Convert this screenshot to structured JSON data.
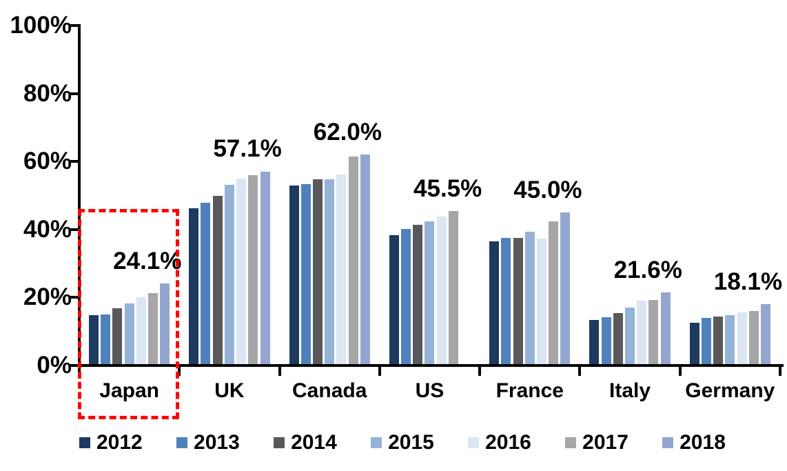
{
  "chart_data": {
    "type": "bar",
    "title": "",
    "xlabel": "",
    "ylabel": "",
    "categories": [
      "Japan",
      "UK",
      "Canada",
      "US",
      "France",
      "Italy",
      "Germany"
    ],
    "series": [
      {
        "name": "2012",
        "color": "#1d3a5f",
        "values": [
          14.9,
          46.3,
          53.0,
          38.4,
          36.5,
          13.3,
          12.6
        ]
      },
      {
        "name": "2013",
        "color": "#4f81bd",
        "values": [
          15.1,
          47.8,
          53.3,
          40.2,
          37.5,
          14.3,
          14.1
        ]
      },
      {
        "name": "2014",
        "color": "#595959",
        "values": [
          16.8,
          50.0,
          54.8,
          41.3,
          37.5,
          15.4,
          14.4
        ]
      },
      {
        "name": "2015",
        "color": "#95b3d7",
        "values": [
          18.2,
          53.2,
          54.8,
          42.3,
          39.3,
          17.0,
          14.8
        ]
      },
      {
        "name": "2016",
        "color": "#dce6f2",
        "values": [
          20.0,
          54.9,
          56.2,
          43.9,
          37.3,
          19.0,
          15.6
        ]
      },
      {
        "name": "2017",
        "color": "#a6a6a6",
        "values": [
          21.2,
          56.0,
          61.5,
          45.5,
          42.3,
          19.2,
          16.0
        ]
      },
      {
        "name": "2018",
        "color": "#93a6d0",
        "values": [
          24.1,
          57.1,
          62.0,
          null,
          45.0,
          21.6,
          18.1
        ]
      }
    ],
    "data_labels": [
      {
        "category": "Japan",
        "text": "24.1%"
      },
      {
        "category": "UK",
        "text": "57.1%"
      },
      {
        "category": "Canada",
        "text": "62.0%"
      },
      {
        "category": "US",
        "text": "45.5%"
      },
      {
        "category": "France",
        "text": "45.0%"
      },
      {
        "category": "Italy",
        "text": "21.6%"
      },
      {
        "category": "Germany",
        "text": "18.1%"
      }
    ],
    "yticks": [
      "0%",
      "20%",
      "40%",
      "60%",
      "80%",
      "100%"
    ],
    "ytick_values": [
      0,
      20,
      40,
      60,
      80,
      100
    ],
    "ylim": [
      0,
      100
    ],
    "grid": false,
    "legend_position": "bottom",
    "highlight": {
      "category": "Japan",
      "color": "#ff0000",
      "style": "dashed-box"
    }
  }
}
